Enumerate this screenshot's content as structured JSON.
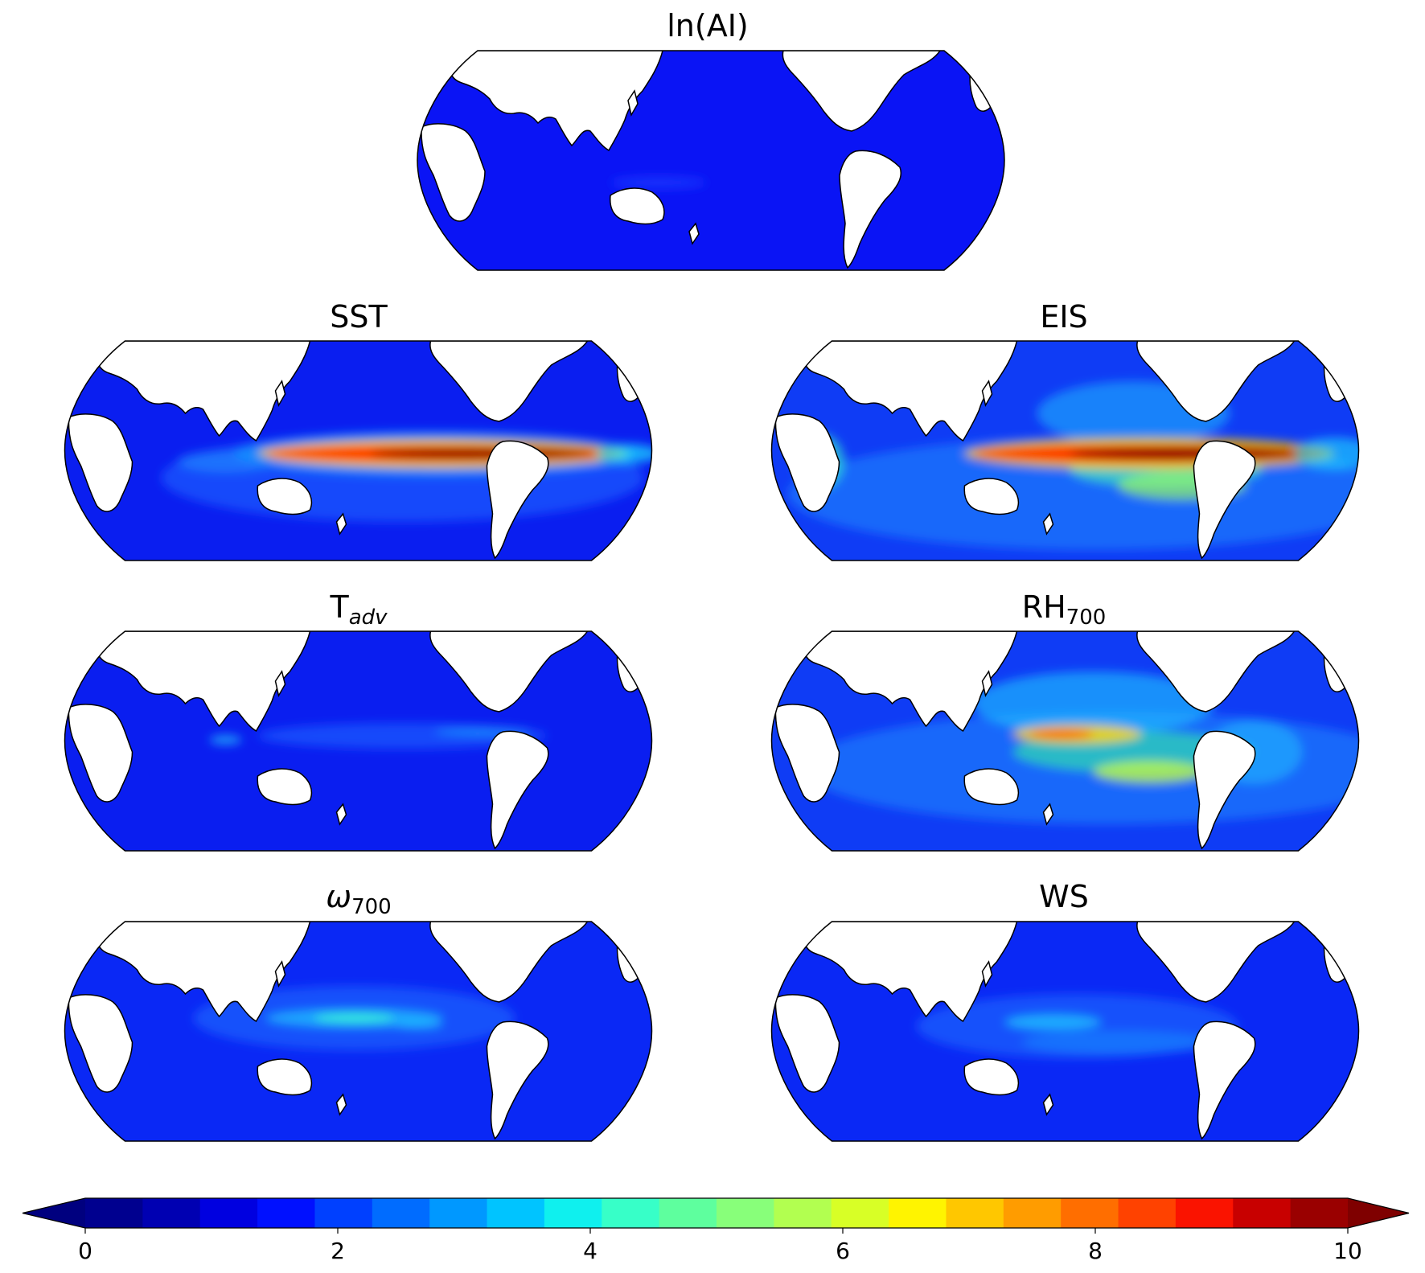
{
  "panels": [
    {
      "id": "ai",
      "title": "ln(AI)",
      "title_main": "",
      "title_sub": "",
      "title_italic": false,
      "bg": "#0a14f5",
      "features": [
        {
          "cx": 300,
          "cy": 164,
          "rx": 60,
          "ry": 8,
          "c": "#1a3cff",
          "o": 0.7
        }
      ]
    },
    {
      "id": "sst",
      "title": "SST",
      "title_main": "",
      "title_sub": "",
      "title_italic": false,
      "bg": "#0a1ef0",
      "features": [
        {
          "cx": 420,
          "cy": 170,
          "rx": 300,
          "ry": 55,
          "c": "#1d5cff",
          "o": 0.7
        },
        {
          "cx": 460,
          "cy": 140,
          "rx": 250,
          "ry": 28,
          "c": "#12b6ff",
          "o": 0.55
        },
        {
          "cx": 470,
          "cy": 140,
          "rx": 230,
          "ry": 18,
          "c": "#ffd400",
          "o": 0.9
        },
        {
          "cx": 470,
          "cy": 140,
          "rx": 220,
          "ry": 11,
          "c": "#ff2a00",
          "o": 0.95
        },
        {
          "cx": 520,
          "cy": 140,
          "rx": 140,
          "ry": 7,
          "c": "#8c0000",
          "o": 1
        },
        {
          "cx": 700,
          "cy": 140,
          "rx": 40,
          "ry": 12,
          "c": "#1fe0ff",
          "o": 0.7
        },
        {
          "cx": 200,
          "cy": 150,
          "rx": 60,
          "ry": 14,
          "c": "#1d8cff",
          "o": 0.6
        }
      ]
    },
    {
      "id": "eis",
      "title": "EIS",
      "title_main": "",
      "title_sub": "",
      "title_italic": false,
      "bg": "#0f3cf5",
      "features": [
        {
          "cx": 400,
          "cy": 190,
          "rx": 380,
          "ry": 70,
          "c": "#1c8cff",
          "o": 0.55
        },
        {
          "cx": 450,
          "cy": 90,
          "rx": 120,
          "ry": 40,
          "c": "#22c8ff",
          "o": 0.5
        },
        {
          "cx": 490,
          "cy": 160,
          "rx": 120,
          "ry": 22,
          "c": "#4dffb0",
          "o": 0.6
        },
        {
          "cx": 470,
          "cy": 140,
          "rx": 230,
          "ry": 20,
          "c": "#ffd400",
          "o": 0.85
        },
        {
          "cx": 470,
          "cy": 140,
          "rx": 220,
          "ry": 12,
          "c": "#ff2a00",
          "o": 0.95
        },
        {
          "cx": 520,
          "cy": 140,
          "rx": 150,
          "ry": 8,
          "c": "#8c0000",
          "o": 1
        },
        {
          "cx": 510,
          "cy": 180,
          "rx": 80,
          "ry": 18,
          "c": "#a0ff60",
          "o": 0.65
        },
        {
          "cx": 60,
          "cy": 150,
          "rx": 30,
          "ry": 35,
          "c": "#39ffc8",
          "o": 0.6
        },
        {
          "cx": 700,
          "cy": 140,
          "rx": 50,
          "ry": 20,
          "c": "#1fe0ff",
          "o": 0.6
        }
      ]
    },
    {
      "id": "tadv",
      "title": "",
      "title_main": "T",
      "title_sub": "adv",
      "title_italic": true,
      "bg": "#0a1ef0",
      "features": [
        {
          "cx": 420,
          "cy": 130,
          "rx": 180,
          "ry": 16,
          "c": "#1d5cff",
          "o": 0.7
        },
        {
          "cx": 520,
          "cy": 125,
          "rx": 60,
          "ry": 5,
          "c": "#1d9cff",
          "o": 0.7
        },
        {
          "cx": 200,
          "cy": 135,
          "rx": 20,
          "ry": 6,
          "c": "#22c8ff",
          "o": 0.7
        }
      ]
    },
    {
      "id": "rh",
      "title": "",
      "title_main": "RH",
      "title_sub": "700",
      "title_italic": false,
      "bg": "#0f3cf5",
      "features": [
        {
          "cx": 420,
          "cy": 170,
          "rx": 380,
          "ry": 70,
          "c": "#1c8cff",
          "o": 0.55
        },
        {
          "cx": 400,
          "cy": 90,
          "rx": 150,
          "ry": 40,
          "c": "#22c8ff",
          "o": 0.6
        },
        {
          "cx": 450,
          "cy": 150,
          "rx": 150,
          "ry": 26,
          "c": "#3cff9c",
          "o": 0.55
        },
        {
          "cx": 380,
          "cy": 128,
          "rx": 80,
          "ry": 12,
          "c": "#ffd400",
          "o": 0.85
        },
        {
          "cx": 360,
          "cy": 128,
          "rx": 40,
          "ry": 6,
          "c": "#ff5a00",
          "o": 0.9
        },
        {
          "cx": 470,
          "cy": 175,
          "rx": 70,
          "ry": 14,
          "c": "#c8ff40",
          "o": 0.75
        },
        {
          "cx": 600,
          "cy": 150,
          "rx": 60,
          "ry": 40,
          "c": "#22c8ff",
          "o": 0.5
        }
      ]
    },
    {
      "id": "omega",
      "title": "",
      "title_main": "ω",
      "title_sub": "700",
      "title_italic": true,
      "bg": "#0a28f5",
      "features": [
        {
          "cx": 360,
          "cy": 120,
          "rx": 200,
          "ry": 40,
          "c": "#1d6cff",
          "o": 0.6
        },
        {
          "cx": 360,
          "cy": 120,
          "rx": 110,
          "ry": 12,
          "c": "#22c8ff",
          "o": 0.7
        },
        {
          "cx": 360,
          "cy": 120,
          "rx": 50,
          "ry": 6,
          "c": "#3cffd0",
          "o": 0.75
        },
        {
          "cx": 440,
          "cy": 128,
          "rx": 30,
          "ry": 5,
          "c": "#22c8ff",
          "o": 0.7
        }
      ]
    },
    {
      "id": "ws",
      "title": "WS",
      "title_main": "",
      "title_sub": "",
      "title_italic": false,
      "bg": "#0a28f5",
      "features": [
        {
          "cx": 380,
          "cy": 130,
          "rx": 200,
          "ry": 40,
          "c": "#1d6cff",
          "o": 0.6
        },
        {
          "cx": 350,
          "cy": 125,
          "rx": 60,
          "ry": 10,
          "c": "#22c8ff",
          "o": 0.75
        },
        {
          "cx": 430,
          "cy": 150,
          "rx": 120,
          "ry": 15,
          "c": "#1d8cff",
          "o": 0.55
        }
      ]
    }
  ],
  "land_color": "#ffffff",
  "colorbar": {
    "min": 0,
    "max": 10,
    "step": 0.5,
    "ticks": [
      "0",
      "2",
      "4",
      "6",
      "8",
      "10"
    ],
    "under_color": "#00007f",
    "over_color": "#7f0000",
    "colors": [
      "#00008f",
      "#0000b2",
      "#0000e0",
      "#0010ff",
      "#0040ff",
      "#006cff",
      "#0098ff",
      "#00c4ff",
      "#0ff0ee",
      "#37ffc8",
      "#5eff9e",
      "#88ff7a",
      "#b2ff50",
      "#d8ff26",
      "#fff400",
      "#ffc700",
      "#ff9c00",
      "#ff6e00",
      "#ff4200",
      "#fa1300",
      "#c80000",
      "#9a0000"
    ]
  }
}
